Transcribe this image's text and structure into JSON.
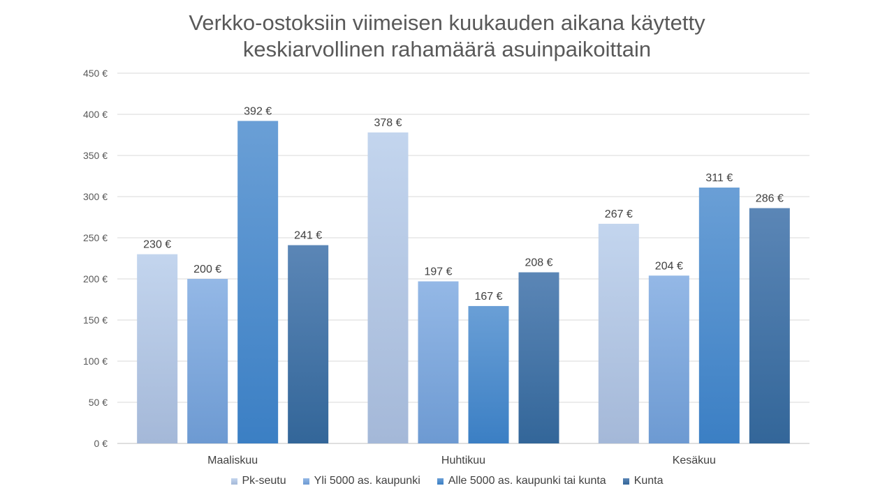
{
  "chart_data": {
    "type": "bar",
    "title_lines": [
      "Verkko-ostoksiin viimeisen kuukauden aikana käytetty",
      "keskiarvollinen rahamäärä asuinpaikoittain"
    ],
    "xlabel": "",
    "ylabel": "",
    "categories": [
      "Maaliskuu",
      "Huhtikuu",
      "Kesäkuu"
    ],
    "series": [
      {
        "name": "Pk-seutu",
        "values": [
          230,
          378,
          267
        ],
        "color_top": "#c3d5ee",
        "color_bottom": "#a4b8d8"
      },
      {
        "name": "Yli 5000 as. kaupunki",
        "values": [
          200,
          197,
          204
        ],
        "color_top": "#94b8e6",
        "color_bottom": "#6d9ad2"
      },
      {
        "name": "Alle 5000 as. kaupunki tai kunta",
        "values": [
          392,
          167,
          311
        ],
        "color_top": "#6a9fd6",
        "color_bottom": "#3b7fc4"
      },
      {
        "name": "Kunta",
        "values": [
          241,
          208,
          286
        ],
        "color_top": "#5b86b6",
        "color_bottom": "#336699"
      }
    ],
    "value_suffix": " €",
    "ylim": [
      0,
      450
    ],
    "ytick_step": 50,
    "grid": true,
    "legend_position": "bottom"
  }
}
